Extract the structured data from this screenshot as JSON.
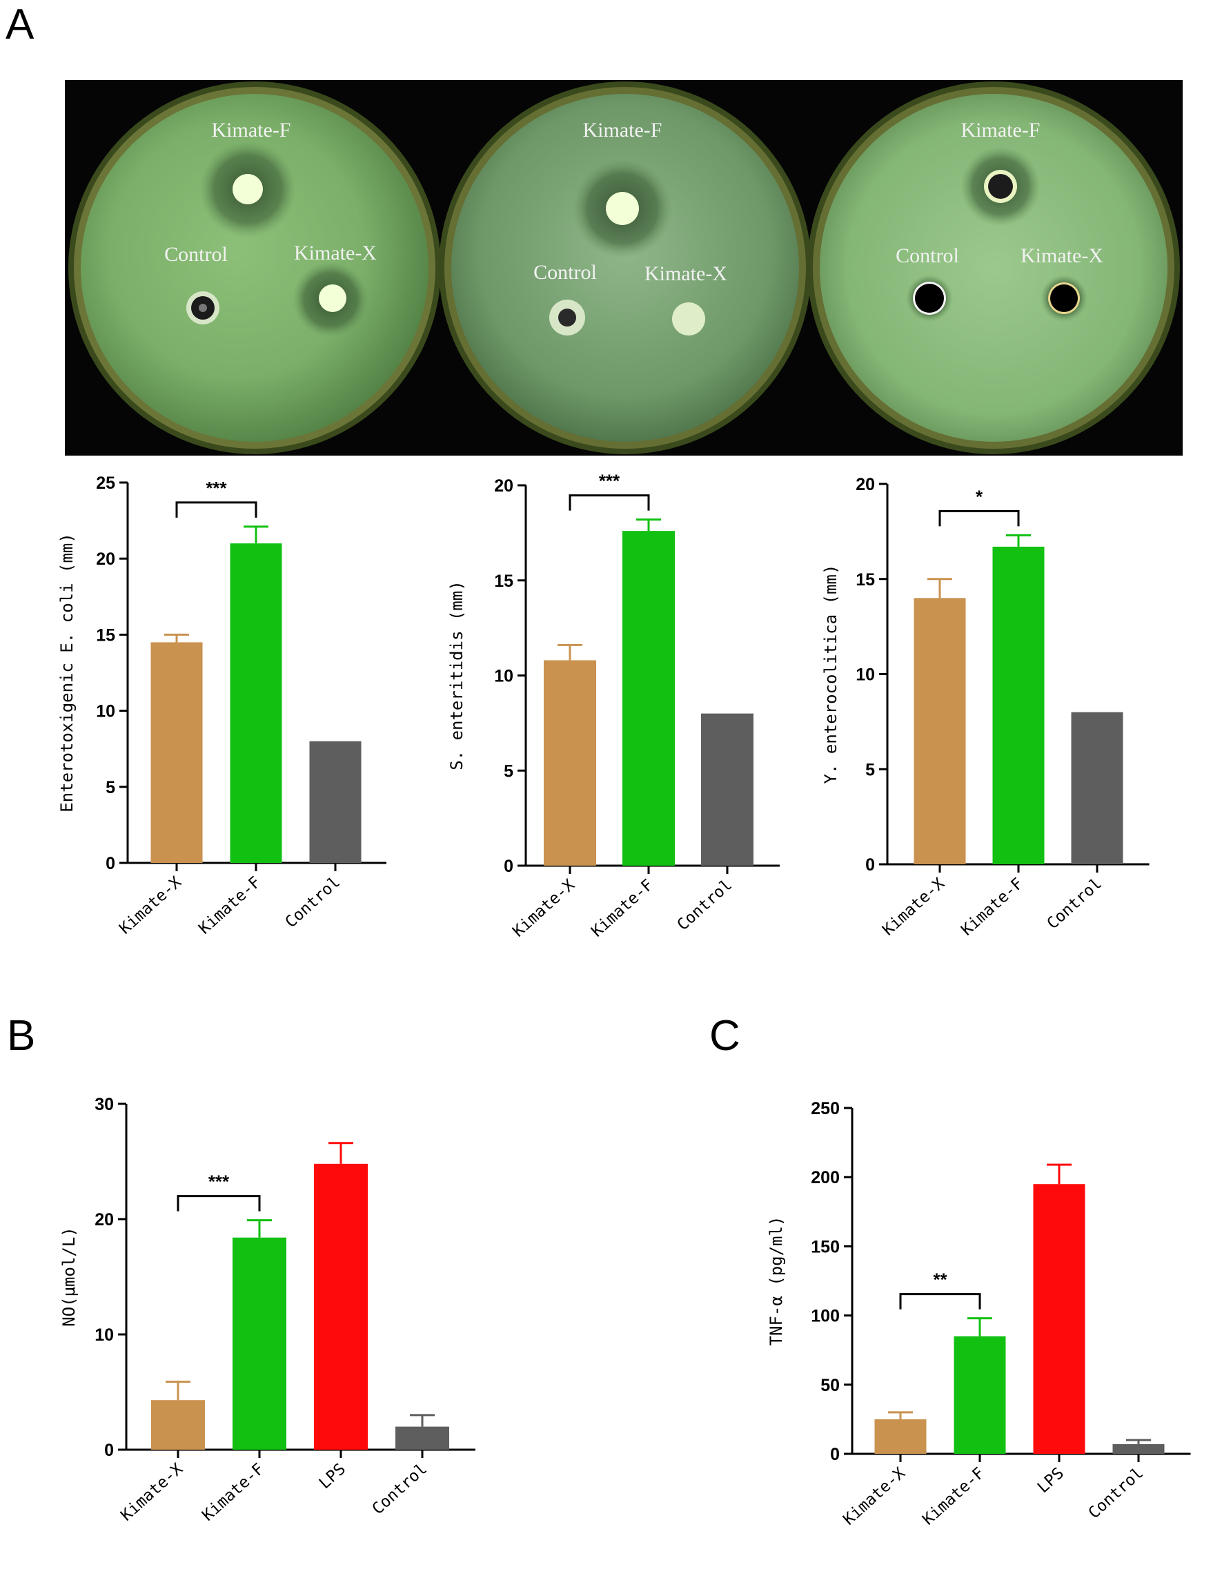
{
  "panels": {
    "a": "A",
    "b": "B",
    "c": "C"
  },
  "plates": [
    {
      "labels": [
        "Kimate-F",
        "Control",
        "Kimate-X"
      ]
    },
    {
      "labels": [
        "Kimate-F",
        "Control",
        "Kimate-X"
      ]
    },
    {
      "labels": [
        "Kimate-F",
        "Control",
        "Kimate-X"
      ]
    }
  ],
  "colors": {
    "Kimate-X": "#c9924f",
    "Kimate-F": "#11c011",
    "LPS": "#ff0a0a",
    "Control": "#5e5e5e"
  },
  "chart_data": [
    {
      "type": "bar",
      "ylabel": "Enterotoxigenic E. coli (mm)",
      "categories": [
        "Kimate-X",
        "Kimate-F",
        "Control"
      ],
      "values": [
        14.5,
        21.0,
        8.0
      ],
      "errors": [
        0.5,
        1.1,
        0
      ],
      "ylim": [
        0,
        25
      ],
      "yticks": [
        0,
        5,
        10,
        15,
        20,
        25
      ],
      "significance": {
        "from": 0,
        "to": 1,
        "label": "***"
      }
    },
    {
      "type": "bar",
      "ylabel": "S. enteritidis (mm)",
      "categories": [
        "Kimate-X",
        "Kimate-F",
        "Control"
      ],
      "values": [
        10.8,
        17.6,
        8.0
      ],
      "errors": [
        0.8,
        0.6,
        0
      ],
      "ylim": [
        0,
        20
      ],
      "yticks": [
        0,
        5,
        10,
        15,
        20
      ],
      "significance": {
        "from": 0,
        "to": 1,
        "label": "***"
      }
    },
    {
      "type": "bar",
      "ylabel": "Y. enterocolitica (mm)",
      "categories": [
        "Kimate-X",
        "Kimate-F",
        "Control"
      ],
      "values": [
        14.0,
        16.7,
        8.0
      ],
      "errors": [
        1.0,
        0.6,
        0
      ],
      "ylim": [
        0,
        20
      ],
      "yticks": [
        0,
        5,
        10,
        15,
        20
      ],
      "significance": {
        "from": 0,
        "to": 1,
        "label": "*"
      }
    },
    {
      "type": "bar",
      "ylabel": "NO(μmol/L)",
      "categories": [
        "Kimate-X",
        "Kimate-F",
        "LPS",
        "Control"
      ],
      "values": [
        4.3,
        18.4,
        24.8,
        2.0
      ],
      "errors": [
        1.6,
        1.5,
        1.8,
        1.0
      ],
      "ylim": [
        0,
        30
      ],
      "yticks": [
        0,
        10,
        20,
        30
      ],
      "significance": {
        "from": 0,
        "to": 1,
        "label": "***"
      }
    },
    {
      "type": "bar",
      "ylabel": "TNF-α (pg/ml)",
      "categories": [
        "Kimate-X",
        "Kimate-F",
        "LPS",
        "Control"
      ],
      "values": [
        25,
        85,
        195,
        7
      ],
      "errors": [
        5,
        13,
        14,
        3
      ],
      "ylim": [
        0,
        250
      ],
      "yticks": [
        0,
        50,
        100,
        150,
        200,
        250
      ],
      "significance": {
        "from": 0,
        "to": 1,
        "label": "**"
      }
    }
  ]
}
